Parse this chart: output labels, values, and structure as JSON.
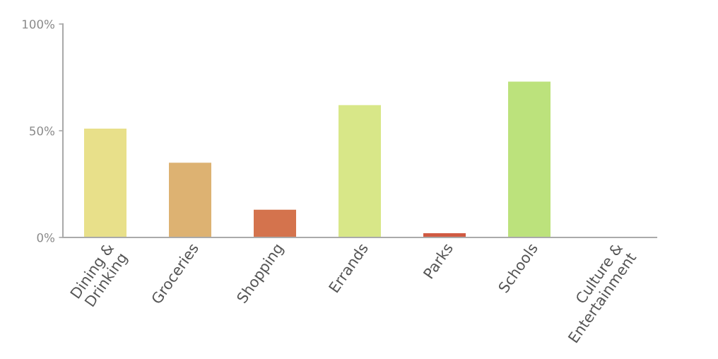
{
  "chart_data": {
    "type": "bar",
    "categories": [
      "Dining &\nDrinking",
      "Groceries",
      "Shopping",
      "Errands",
      "Parks",
      "Schools",
      "Culture &\nEntertainment"
    ],
    "values": [
      51,
      35,
      13,
      62,
      2,
      73,
      0
    ],
    "colors": [
      "#e8e08a",
      "#ddb272",
      "#d4734d",
      "#d8e788",
      "#d05a42",
      "#bce27c",
      "#c94a3a"
    ],
    "ylim": [
      0,
      100
    ],
    "yticks": [
      {
        "value": 0,
        "label": "0%"
      },
      {
        "value": 50,
        "label": "50%"
      },
      {
        "value": 100,
        "label": "100%"
      }
    ]
  }
}
